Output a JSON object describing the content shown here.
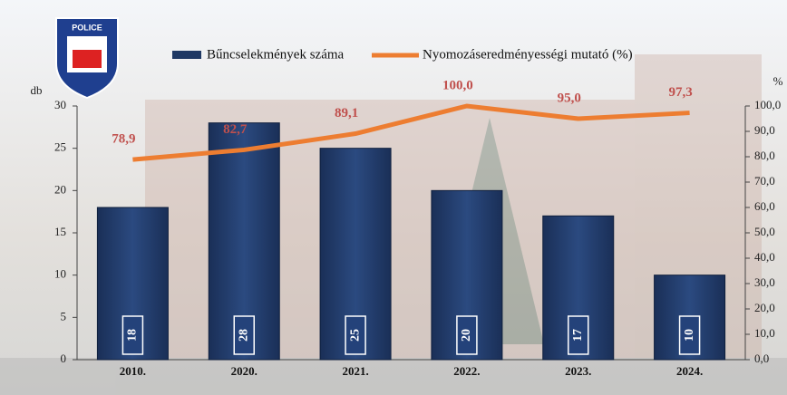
{
  "logo_text": "POLICE",
  "chart_data": {
    "type": "bar-line",
    "categories": [
      "2010.",
      "2020.",
      "2021.",
      "2022.",
      "2023.",
      "2024."
    ],
    "series": [
      {
        "name": "Bűncselekmények száma",
        "type": "bar",
        "color": "#1f3864",
        "values": [
          18,
          28,
          25,
          20,
          17,
          10
        ]
      },
      {
        "name": "Nyomozáseredményességi mutató (%)",
        "type": "line",
        "axis": "y2",
        "color": "#ed7d31",
        "values": [
          78.9,
          82.7,
          89.1,
          100.0,
          95.0,
          97.3
        ],
        "value_labels": [
          "78,9",
          "82,7",
          "89,1",
          "100,0",
          "95,0",
          "97,3"
        ]
      }
    ],
    "ylabel": "db",
    "y2label": "%",
    "ylim": [
      0,
      30
    ],
    "yticks": [
      0,
      5,
      10,
      15,
      20,
      25,
      30
    ],
    "y2lim": [
      0,
      100
    ],
    "y2ticks": [
      {
        "value": 0,
        "label": "0,0"
      },
      {
        "value": 10,
        "label": "10,0"
      },
      {
        "value": 20,
        "label": "20,0"
      },
      {
        "value": 30,
        "label": "30,0"
      },
      {
        "value": 40,
        "label": "40,0"
      },
      {
        "value": 50,
        "label": "50,0"
      },
      {
        "value": 60,
        "label": "60,0"
      },
      {
        "value": 70,
        "label": "70,0"
      },
      {
        "value": 80,
        "label": "80,0"
      },
      {
        "value": 90,
        "label": "90,0"
      },
      {
        "value": 100,
        "label": "100,0"
      }
    ]
  }
}
